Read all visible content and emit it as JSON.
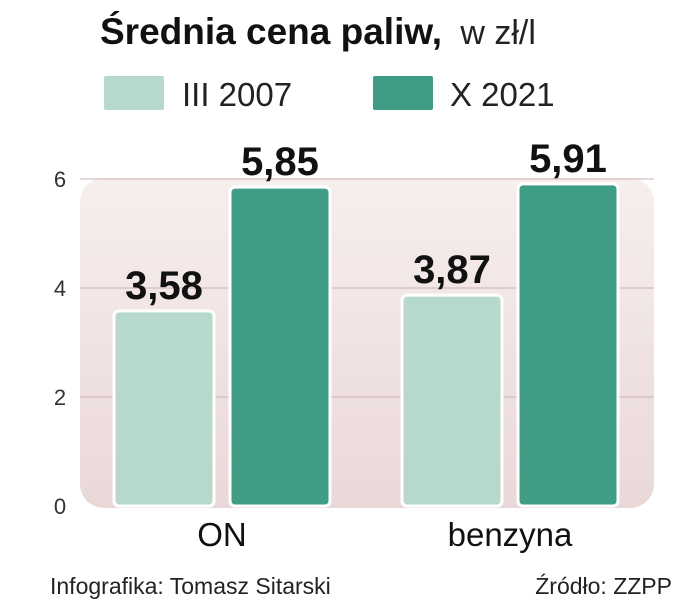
{
  "header": {
    "title": "Średnia cena paliw,",
    "unit": "w zł/l"
  },
  "footer": {
    "credit": "Infografika: Tomasz Sitarski",
    "source": "Źródło: ZZPP"
  },
  "chart_data": {
    "type": "bar",
    "categories": [
      "ON",
      "benzyna"
    ],
    "series": [
      {
        "name": "III 2007",
        "values": [
          3.58,
          3.87
        ],
        "value_labels": [
          "3,58",
          "3,87"
        ],
        "color": "#b7d9cb"
      },
      {
        "name": "X 2021",
        "values": [
          5.85,
          5.91
        ],
        "value_labels": [
          "5,85",
          "5,91"
        ],
        "color": "#3f9c85"
      }
    ],
    "yticks": [
      0,
      2,
      4,
      6
    ],
    "ylim": [
      0,
      6
    ],
    "grid": true,
    "legend": "top",
    "plot_background": "#f3e8e8"
  }
}
